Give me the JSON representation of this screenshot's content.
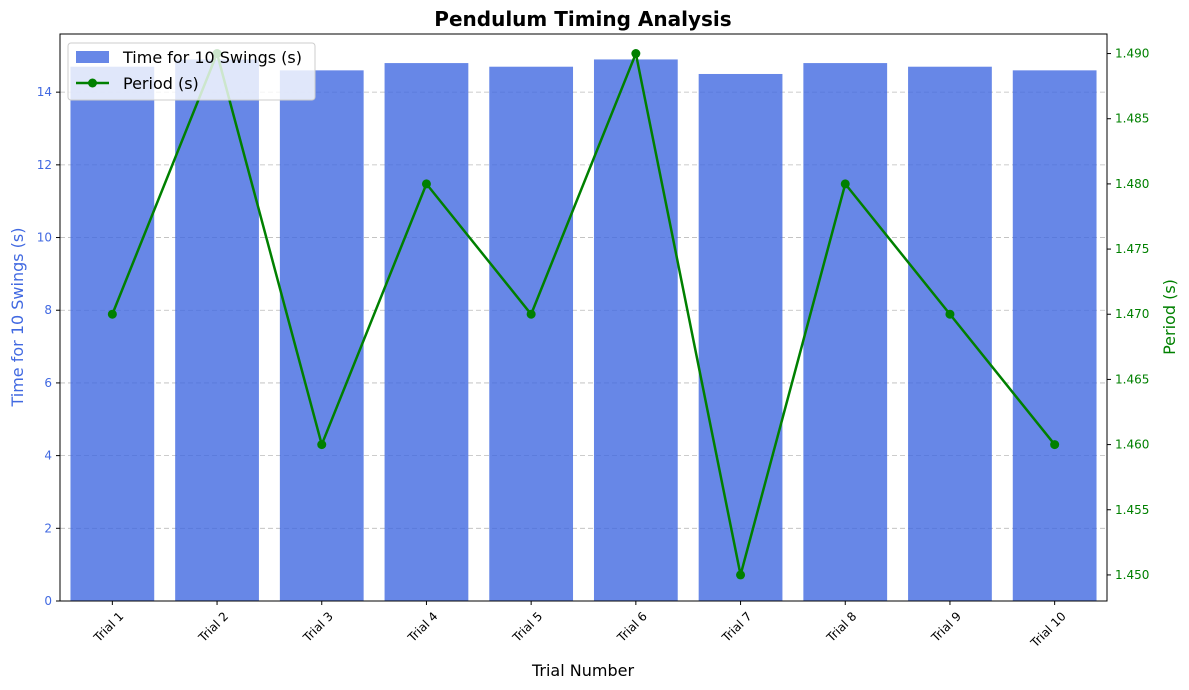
{
  "chart_data": {
    "type": "bar",
    "title": "Pendulum Timing Analysis",
    "xlabel": "Trial Number",
    "categories": [
      "Trial 1",
      "Trial 2",
      "Trial 3",
      "Trial 4",
      "Trial 5",
      "Trial 6",
      "Trial 7",
      "Trial 8",
      "Trial 9",
      "Trial 10"
    ],
    "series": [
      {
        "name": "Time for 10 Swings (s)",
        "type": "bar",
        "axis": "left",
        "color": "#4169E1",
        "values": [
          14.7,
          14.9,
          14.6,
          14.8,
          14.7,
          14.9,
          14.5,
          14.8,
          14.7,
          14.6
        ]
      },
      {
        "name": "Period (s)",
        "type": "line",
        "axis": "right",
        "color": "#008000",
        "marker": "circle",
        "values": [
          1.47,
          1.49,
          1.46,
          1.48,
          1.47,
          1.49,
          1.45,
          1.48,
          1.47,
          1.46
        ]
      }
    ],
    "y_left": {
      "label": "Time for 10 Swings (s)",
      "range": [
        0,
        15.6
      ],
      "ticks": [
        0,
        2,
        4,
        6,
        8,
        10,
        12,
        14
      ],
      "tick_labels": [
        "0",
        "2",
        "4",
        "6",
        "8",
        "10",
        "12",
        "14"
      ],
      "color": "#4169E1"
    },
    "y_right": {
      "label": "Period (s)",
      "range": [
        1.448,
        1.4915
      ],
      "ticks": [
        1.45,
        1.455,
        1.46,
        1.465,
        1.47,
        1.475,
        1.48,
        1.485,
        1.49
      ],
      "tick_labels": [
        "1.450",
        "1.455",
        "1.460",
        "1.465",
        "1.470",
        "1.475",
        "1.480",
        "1.485",
        "1.490"
      ],
      "color": "#008000"
    },
    "grid": "horizontal-dashed",
    "legend_position": "top-left"
  }
}
